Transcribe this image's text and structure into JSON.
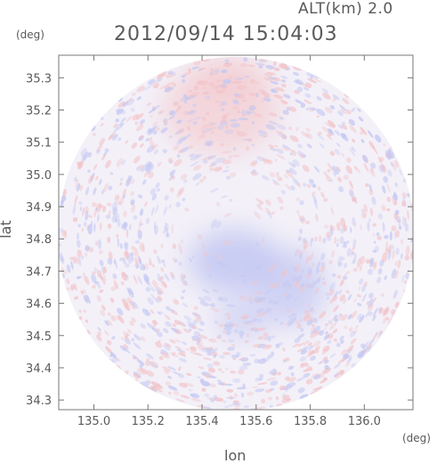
{
  "chart_data": {
    "type": "heatmap",
    "title": "2012/09/14 15:04:03",
    "subtitle": "ALT(km) 2.0",
    "xlabel": "lon",
    "ylabel": "lat",
    "xunit": "(deg)",
    "yunit": "(deg)",
    "xlim": [
      134.87,
      136.18
    ],
    "ylim": [
      34.27,
      35.37
    ],
    "xticks": [
      135.0,
      135.2,
      135.4,
      135.6,
      135.8,
      136.0
    ],
    "xtick_labels": [
      "135.0",
      "135.2",
      "135.4",
      "135.6",
      "135.8",
      "136.0"
    ],
    "yticks": [
      34.3,
      34.4,
      34.5,
      34.6,
      34.7,
      34.8,
      34.9,
      35.0,
      35.1,
      35.2,
      35.3
    ],
    "ytick_labels": [
      "34.3",
      "34.4",
      "34.5",
      "34.6",
      "34.7",
      "34.8",
      "34.9",
      "35.0",
      "35.1",
      "35.2",
      "35.3"
    ],
    "radar_center": {
      "lon": 135.525,
      "lat": 34.815
    },
    "radar_radius_lon": 0.66,
    "radar_radius_lat": 0.55,
    "positive_color": "#f2c4c8",
    "negative_color": "#c4c8f2",
    "neutral_color": "#f3f0f8",
    "regions": [
      {
        "name": "positive-north",
        "lon": 135.47,
        "lat": 35.2,
        "rlon": 0.22,
        "rlat": 0.14,
        "value": 0.35
      },
      {
        "name": "positive-north-upper",
        "lon": 135.5,
        "lat": 35.3,
        "rlon": 0.14,
        "rlat": 0.07,
        "value": 0.3
      },
      {
        "name": "negative-center",
        "lon": 135.52,
        "lat": 34.73,
        "rlon": 0.17,
        "rlat": 0.1,
        "value": -0.55
      },
      {
        "name": "negative-east",
        "lon": 135.73,
        "lat": 34.65,
        "rlon": 0.13,
        "rlat": 0.12,
        "value": -0.45
      },
      {
        "name": "negative-south",
        "lon": 135.55,
        "lat": 34.55,
        "rlon": 0.1,
        "rlat": 0.06,
        "value": -0.4
      }
    ]
  }
}
